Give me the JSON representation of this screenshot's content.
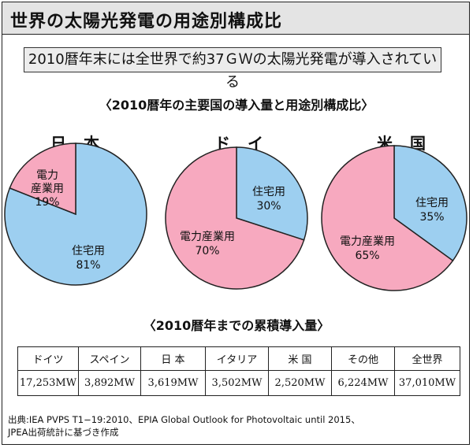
{
  "page": {
    "title": "世界の太陽光発電の用途別構成比",
    "banner": "2010暦年末には全世界で約37ＧＷの太陽光発電が導入されている",
    "subtitle_pies": "〈2010暦年の主要国の導入量と用途別構成比〉",
    "subtitle_table": "〈2010暦年までの累積導入量〉",
    "source_line1": "出典:IEA PVPS T1−19:2010、EPIA Global Outlook for Photovoltaic until 2015、",
    "source_line2": "JPEA出荷統計に基づき作成"
  },
  "colors": {
    "residential": "#9dcff0",
    "power_industrial": "#f7a9bf",
    "border": "#222222"
  },
  "chart_data": [
    {
      "type": "pie",
      "title": "日本",
      "slices": [
        {
          "label": "住宅用",
          "value": 81
        },
        {
          "label": "電力産業用",
          "value": 19
        }
      ]
    },
    {
      "type": "pie",
      "title": "ドイツ",
      "slices": [
        {
          "label": "住宅用",
          "value": 30
        },
        {
          "label": "電力産業用",
          "value": 70
        }
      ]
    },
    {
      "type": "pie",
      "title": "米国",
      "slices": [
        {
          "label": "住宅用",
          "value": 35
        },
        {
          "label": "電力産業用",
          "value": 65
        }
      ]
    },
    {
      "type": "table",
      "title": "〈2010暦年までの累積導入量〉",
      "headers": [
        "ドイツ",
        "スペイン",
        "日本",
        "イタリア",
        "米国",
        "その他",
        "全世界"
      ],
      "rows": [
        [
          "17,253MW",
          "3,892MW",
          "3,619MW",
          "3,502MW",
          "2,520MW",
          "6,224MW",
          "37,010MW"
        ]
      ]
    }
  ],
  "pie_labels": [
    {
      "country": "日本",
      "res_label": "住宅用",
      "res_pct": "81%",
      "ind_label_l1": "電力",
      "ind_label_l2": "産業用",
      "ind_pct": "19%"
    },
    {
      "country": "ドイツ",
      "res_label": "住宅用",
      "res_pct": "30%",
      "ind_label_l1": "電力産業用",
      "ind_pct": "70%"
    },
    {
      "country": "米国",
      "res_label": "住宅用",
      "res_pct": "35%",
      "ind_label_l1": "電力産業用",
      "ind_pct": "65%"
    }
  ],
  "table": {
    "headers": [
      "ドイツ",
      "スペイン",
      "日 本",
      "イタリア",
      "米 国",
      "その他",
      "全世界"
    ],
    "values": [
      "17,253MW",
      "3,892MW",
      "3,619MW",
      "3,502MW",
      "2,520MW",
      "6,224MW",
      "37,010MW"
    ]
  }
}
